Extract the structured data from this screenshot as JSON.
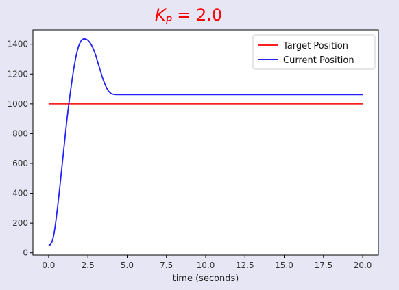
{
  "chart_data": {
    "type": "line",
    "title": {
      "symbol": "K",
      "subscript": "P",
      "relation": " = ",
      "value": "2.0",
      "color": "#ff0000"
    },
    "xlabel": "time (seconds)",
    "ylabel": "",
    "xlim": [
      -1.0,
      21.0
    ],
    "ylim": [
      -15,
      1495
    ],
    "xticks": [
      0.0,
      2.5,
      5.0,
      7.5,
      10.0,
      12.5,
      15.0,
      17.5,
      20.0
    ],
    "xtick_labels": [
      "0.0",
      "2.5",
      "5.0",
      "7.5",
      "10.0",
      "12.5",
      "15.0",
      "17.5",
      "20.0"
    ],
    "yticks": [
      0,
      200,
      400,
      600,
      800,
      1000,
      1200,
      1400
    ],
    "ytick_labels": [
      "0",
      "200",
      "400",
      "600",
      "800",
      "1000",
      "1200",
      "1400"
    ],
    "grid": false,
    "legend_position": "top-right",
    "series": [
      {
        "name": "Target Position",
        "color": "#ff2020",
        "x": [
          0.0,
          20.0
        ],
        "y": [
          1000,
          1000
        ]
      },
      {
        "name": "Current Position",
        "color": "#2222ff",
        "x": [
          0.0,
          0.1,
          0.2,
          0.3,
          0.4,
          0.5,
          0.6,
          0.7,
          0.8,
          0.9,
          1.0,
          1.1,
          1.2,
          1.3,
          1.4,
          1.5,
          1.6,
          1.7,
          1.8,
          1.9,
          2.0,
          2.1,
          2.2,
          2.3,
          2.4,
          2.5,
          2.6,
          2.7,
          2.8,
          2.9,
          3.0,
          3.1,
          3.2,
          3.3,
          3.4,
          3.5,
          3.6,
          3.7,
          3.8,
          3.9,
          4.0,
          4.1,
          4.2,
          4.3,
          4.4,
          4.6,
          5.0,
          6.0,
          8.0,
          10.0,
          12.0,
          14.0,
          16.0,
          18.0,
          20.0
        ],
        "y": [
          50,
          55,
          70,
          105,
          165,
          245,
          335,
          430,
          530,
          630,
          730,
          830,
          925,
          1010,
          1090,
          1165,
          1235,
          1295,
          1345,
          1385,
          1410,
          1428,
          1435,
          1436,
          1433,
          1426,
          1415,
          1400,
          1380,
          1355,
          1325,
          1290,
          1255,
          1220,
          1185,
          1155,
          1128,
          1105,
          1088,
          1076,
          1068,
          1065,
          1063,
          1062,
          1062,
          1062,
          1062,
          1062,
          1062,
          1062,
          1062,
          1062,
          1062,
          1062,
          1062
        ]
      }
    ]
  }
}
